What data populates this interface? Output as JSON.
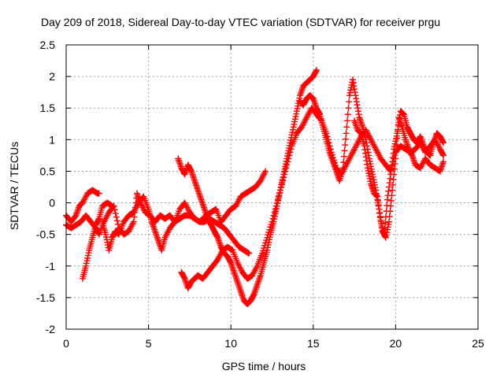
{
  "chart_data": {
    "type": "scatter",
    "title": "Day 209 of 2018, Sidereal Day-to-day VTEC variation (SDTVAR) for receiver prgu",
    "xlabel": "GPS time / hours",
    "ylabel": "SDTVAR / TECUs",
    "xlim": [
      0,
      25
    ],
    "ylim": [
      -2,
      2.5
    ],
    "xticks": [
      0,
      5,
      10,
      15,
      20,
      25
    ],
    "yticks": [
      -2,
      -1.5,
      -1,
      -0.5,
      0,
      0.5,
      1,
      1.5,
      2,
      2.5
    ],
    "grid": true,
    "marker": "+",
    "color": "#ff0000",
    "series": [
      {
        "points": [
          [
            0.0,
            -0.2
          ],
          [
            0.3,
            -0.3
          ],
          [
            0.6,
            -0.2
          ],
          [
            0.8,
            -0.05
          ],
          [
            1.0,
            0.0
          ],
          [
            1.3,
            0.15
          ],
          [
            1.6,
            0.2
          ],
          [
            1.9,
            0.15
          ],
          [
            2.0,
            0.15
          ]
        ]
      },
      {
        "points": [
          [
            0.0,
            -0.35
          ],
          [
            0.3,
            -0.4
          ],
          [
            0.6,
            -0.35
          ],
          [
            0.9,
            -0.3
          ],
          [
            1.2,
            -0.2
          ],
          [
            1.5,
            -0.3
          ],
          [
            1.8,
            -0.4
          ],
          [
            2.0,
            -0.5
          ],
          [
            2.3,
            -0.3
          ],
          [
            2.6,
            -0.15
          ],
          [
            2.9,
            -0.05
          ],
          [
            3.2,
            -0.4
          ],
          [
            3.5,
            -0.5
          ],
          [
            3.8,
            -0.45
          ],
          [
            4.1,
            -0.3
          ],
          [
            4.3,
            0.15
          ],
          [
            4.5,
            0.0
          ],
          [
            4.8,
            -0.15
          ],
          [
            5.1,
            -0.2
          ],
          [
            5.4,
            -0.3
          ],
          [
            5.7,
            -0.2
          ],
          [
            6.0,
            -0.25
          ],
          [
            6.3,
            -0.2
          ],
          [
            6.6,
            -0.3
          ],
          [
            6.9,
            -0.25
          ],
          [
            7.2,
            -0.2
          ],
          [
            7.5,
            -0.2
          ],
          [
            7.8,
            -0.25
          ],
          [
            8.1,
            -0.3
          ],
          [
            8.4,
            -0.3
          ],
          [
            8.7,
            -0.25
          ],
          [
            9.0,
            -0.3
          ],
          [
            9.3,
            -0.35
          ],
          [
            9.6,
            -0.4
          ],
          [
            9.9,
            -0.5
          ],
          [
            10.2,
            -0.6
          ],
          [
            10.5,
            -0.7
          ],
          [
            10.8,
            -0.75
          ],
          [
            11.1,
            -0.8
          ]
        ]
      },
      {
        "points": [
          [
            1.0,
            -1.2
          ],
          [
            1.2,
            -1.0
          ],
          [
            1.4,
            -0.75
          ],
          [
            1.6,
            -0.55
          ],
          [
            1.8,
            -0.35
          ],
          [
            2.0,
            -0.25
          ],
          [
            2.2,
            -0.05
          ],
          [
            2.5,
            0.0
          ],
          [
            2.8,
            -0.05
          ]
        ]
      },
      {
        "points": [
          [
            2.2,
            -0.3
          ],
          [
            2.4,
            -0.5
          ],
          [
            2.6,
            -0.75
          ],
          [
            2.8,
            -0.55
          ],
          [
            3.0,
            -0.45
          ],
          [
            3.2,
            -0.5
          ],
          [
            3.5,
            -0.3
          ],
          [
            3.8,
            -0.2
          ],
          [
            4.1,
            -0.15
          ],
          [
            4.4,
            0.0
          ],
          [
            4.7,
            0.1
          ],
          [
            5.0,
            -0.1
          ],
          [
            5.2,
            -0.3
          ],
          [
            5.4,
            -0.45
          ],
          [
            5.6,
            -0.6
          ],
          [
            5.8,
            -0.75
          ],
          [
            6.0,
            -0.55
          ],
          [
            6.3,
            -0.4
          ],
          [
            6.6,
            -0.3
          ],
          [
            6.9,
            -0.1
          ],
          [
            7.2,
            0.0
          ],
          [
            7.5,
            -0.15
          ],
          [
            7.8,
            -0.25
          ],
          [
            8.1,
            -0.3
          ],
          [
            8.5,
            -0.2
          ],
          [
            8.8,
            -0.15
          ],
          [
            9.1,
            -0.1
          ],
          [
            9.4,
            -0.3
          ],
          [
            9.7,
            -0.2
          ],
          [
            10.0,
            -0.1
          ],
          [
            10.3,
            -0.05
          ],
          [
            10.6,
            0.1
          ],
          [
            10.9,
            0.15
          ],
          [
            11.2,
            0.2
          ],
          [
            11.5,
            0.25
          ],
          [
            11.8,
            0.35
          ],
          [
            12.1,
            0.5
          ]
        ]
      },
      {
        "points": [
          [
            6.8,
            0.7
          ],
          [
            7.0,
            0.55
          ],
          [
            7.2,
            0.45
          ],
          [
            7.4,
            0.6
          ],
          [
            7.6,
            0.5
          ],
          [
            7.8,
            0.35
          ],
          [
            8.0,
            0.2
          ],
          [
            8.2,
            0.05
          ],
          [
            8.4,
            -0.1
          ],
          [
            8.6,
            -0.25
          ],
          [
            8.8,
            -0.35
          ],
          [
            9.0,
            -0.45
          ],
          [
            9.2,
            -0.55
          ],
          [
            9.4,
            -0.7
          ],
          [
            9.6,
            -0.8
          ],
          [
            9.8,
            -0.85
          ],
          [
            10.0,
            -0.95
          ],
          [
            10.2,
            -1.1
          ],
          [
            10.4,
            -1.25
          ],
          [
            10.6,
            -1.4
          ],
          [
            10.8,
            -1.55
          ],
          [
            11.0,
            -1.6
          ],
          [
            11.2,
            -1.55
          ],
          [
            11.4,
            -1.45
          ],
          [
            11.6,
            -1.3
          ],
          [
            11.8,
            -1.15
          ],
          [
            12.0,
            -0.95
          ],
          [
            12.2,
            -0.75
          ],
          [
            12.4,
            -0.5
          ],
          [
            12.6,
            -0.3
          ],
          [
            12.8,
            -0.05
          ],
          [
            13.0,
            0.2
          ],
          [
            13.2,
            0.45
          ],
          [
            13.4,
            0.7
          ],
          [
            13.6,
            0.95
          ],
          [
            13.8,
            1.2
          ],
          [
            14.0,
            1.45
          ],
          [
            14.2,
            1.7
          ],
          [
            14.4,
            1.85
          ],
          [
            14.6,
            1.9
          ],
          [
            14.8,
            1.95
          ],
          [
            15.0,
            2.0
          ],
          [
            15.2,
            2.1
          ]
        ]
      },
      {
        "points": [
          [
            7.0,
            -1.1
          ],
          [
            7.2,
            -1.2
          ],
          [
            7.4,
            -1.35
          ],
          [
            7.6,
            -1.25
          ],
          [
            7.8,
            -1.2
          ],
          [
            8.0,
            -1.15
          ],
          [
            8.3,
            -1.2
          ],
          [
            8.6,
            -1.1
          ],
          [
            8.9,
            -1.0
          ],
          [
            9.2,
            -0.9
          ],
          [
            9.5,
            -0.75
          ],
          [
            9.8,
            -0.7
          ],
          [
            10.1,
            -0.75
          ],
          [
            10.4,
            -0.95
          ],
          [
            10.7,
            -1.1
          ],
          [
            11.0,
            -1.2
          ],
          [
            11.3,
            -1.15
          ],
          [
            11.6,
            -1.0
          ],
          [
            11.9,
            -0.8
          ],
          [
            12.2,
            -0.55
          ],
          [
            12.5,
            -0.3
          ],
          [
            12.8,
            0.0
          ],
          [
            13.1,
            0.3
          ],
          [
            13.4,
            0.6
          ],
          [
            13.7,
            0.9
          ],
          [
            14.0,
            1.1
          ],
          [
            14.3,
            1.2
          ],
          [
            14.6,
            1.35
          ],
          [
            14.9,
            1.5
          ],
          [
            15.2,
            1.4
          ],
          [
            15.5,
            1.3
          ],
          [
            15.8,
            1.1
          ],
          [
            16.1,
            0.8
          ],
          [
            16.4,
            0.55
          ],
          [
            16.7,
            0.45
          ],
          [
            17.0,
            0.6
          ],
          [
            17.3,
            0.75
          ],
          [
            17.6,
            0.9
          ],
          [
            17.9,
            1.05
          ],
          [
            18.2,
            1.15
          ],
          [
            18.5,
            1.0
          ],
          [
            18.8,
            0.85
          ],
          [
            19.1,
            0.7
          ],
          [
            19.4,
            0.6
          ],
          [
            19.7,
            0.5
          ],
          [
            20.0,
            0.8
          ],
          [
            20.3,
            0.9
          ],
          [
            20.6,
            0.85
          ],
          [
            20.9,
            0.8
          ],
          [
            21.2,
            0.85
          ],
          [
            21.5,
            0.95
          ],
          [
            21.8,
            0.8
          ],
          [
            22.1,
            0.9
          ],
          [
            22.4,
            1.0
          ],
          [
            22.7,
            0.85
          ],
          [
            22.9,
            0.75
          ]
        ]
      },
      {
        "points": [
          [
            14.2,
            1.6
          ],
          [
            14.4,
            1.55
          ],
          [
            14.6,
            1.65
          ],
          [
            14.8,
            1.7
          ],
          [
            15.0,
            1.65
          ],
          [
            15.2,
            1.5
          ],
          [
            15.4,
            1.4
          ],
          [
            15.6,
            1.2
          ],
          [
            15.8,
            1.0
          ],
          [
            16.0,
            0.8
          ],
          [
            16.2,
            0.65
          ],
          [
            16.4,
            0.5
          ],
          [
            16.6,
            0.35
          ],
          [
            16.8,
            0.55
          ],
          [
            17.0,
            1.1
          ],
          [
            17.2,
            1.7
          ],
          [
            17.4,
            1.95
          ],
          [
            17.6,
            1.65
          ],
          [
            17.8,
            1.35
          ],
          [
            18.0,
            1.2
          ],
          [
            18.2,
            1.0
          ],
          [
            18.4,
            0.7
          ],
          [
            18.6,
            0.45
          ],
          [
            18.8,
            0.2
          ],
          [
            19.0,
            -0.1
          ],
          [
            19.2,
            -0.45
          ],
          [
            19.4,
            -0.55
          ],
          [
            19.6,
            -0.3
          ],
          [
            19.8,
            0.2
          ],
          [
            20.0,
            0.7
          ],
          [
            20.2,
            1.35
          ],
          [
            20.4,
            1.2
          ],
          [
            20.6,
            1.0
          ],
          [
            20.8,
            0.85
          ],
          [
            21.0,
            0.75
          ],
          [
            21.2,
            0.6
          ],
          [
            21.5,
            0.55
          ],
          [
            21.8,
            0.7
          ],
          [
            22.1,
            0.6
          ],
          [
            22.4,
            0.55
          ],
          [
            22.7,
            0.5
          ],
          [
            22.9,
            0.65
          ]
        ]
      },
      {
        "points": [
          [
            17.5,
            1.3
          ],
          [
            17.7,
            1.15
          ],
          [
            17.9,
            1.1
          ],
          [
            18.1,
            0.9
          ],
          [
            18.3,
            0.55
          ],
          [
            18.5,
            0.3
          ],
          [
            18.7,
            0.15
          ],
          [
            18.9,
            0.1
          ],
          [
            19.1,
            -0.3
          ],
          [
            19.3,
            -0.5
          ],
          [
            19.5,
            0.05
          ],
          [
            19.7,
            0.45
          ],
          [
            19.9,
            0.85
          ],
          [
            20.1,
            1.1
          ],
          [
            20.3,
            1.45
          ],
          [
            20.5,
            1.4
          ],
          [
            20.7,
            1.2
          ],
          [
            20.9,
            1.1
          ],
          [
            21.1,
            1.0
          ],
          [
            21.3,
            0.95
          ],
          [
            21.5,
            1.05
          ],
          [
            21.7,
            0.9
          ],
          [
            21.9,
            0.8
          ],
          [
            22.1,
            0.75
          ],
          [
            22.3,
            0.95
          ],
          [
            22.5,
            1.1
          ],
          [
            22.7,
            1.05
          ],
          [
            22.9,
            0.95
          ]
        ]
      }
    ]
  }
}
